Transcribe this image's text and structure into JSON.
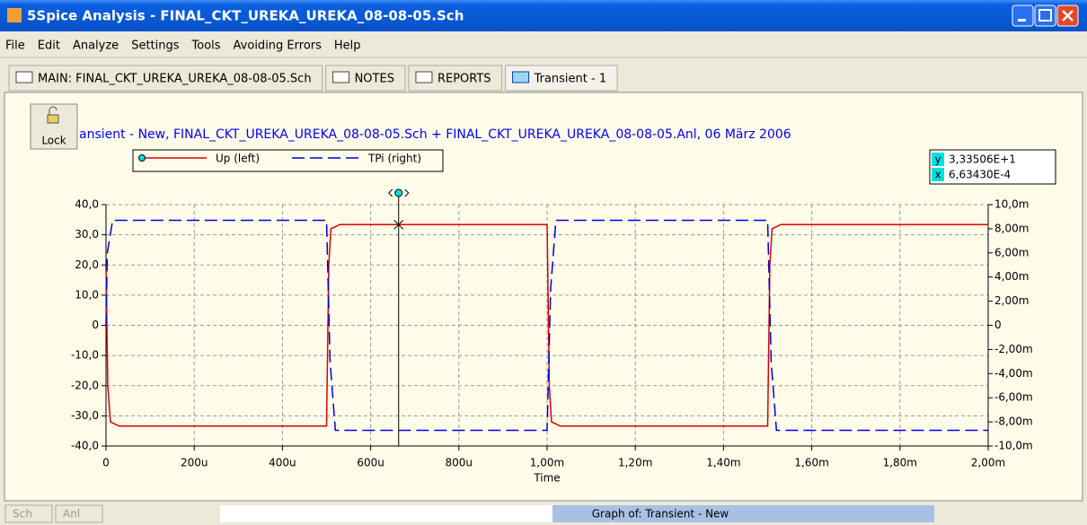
{
  "window": {
    "title": "5Spice Analysis - FINAL_CKT_UREKA_UREKA_08-08-05.Sch",
    "menu": [
      "File",
      "Edit",
      "Analyze",
      "Settings",
      "Tools",
      "Avoiding Errors",
      "Help"
    ],
    "tabs": [
      "MAIN: FINAL_CKT_UREKA_UREKA_08-08-05.Sch",
      "NOTES",
      "REPORTS",
      "Transient - 1"
    ],
    "lock_button": "Lock",
    "status": {
      "sch": "Sch",
      "anl": "Anl",
      "graph": "Graph of:  Transient - New"
    }
  },
  "chart_data": {
    "type": "line",
    "title": "ansient - New,   FINAL_CKT_UREKA_UREKA_08-08-05.Sch + FINAL_CKT_UREKA_UREKA_08-08-05.Anl,   06 März 2006",
    "xlabel": "Time",
    "xlim": [
      0,
      0.002
    ],
    "xticks": [
      0,
      {
        "value": 0.0002,
        "label": "200u"
      },
      {
        "value": 0.0004,
        "label": "400u"
      },
      {
        "value": 0.0006,
        "label": "600u"
      },
      {
        "value": 0.0008,
        "label": "800u"
      },
      {
        "value": 0.001,
        "label": "1,00m"
      },
      {
        "value": 0.0012,
        "label": "1,20m"
      },
      {
        "value": 0.0014,
        "label": "1,40m"
      },
      {
        "value": 0.0016,
        "label": "1,60m"
      },
      {
        "value": 0.0018,
        "label": "1,80m"
      },
      {
        "value": 0.002,
        "label": "2,00m"
      }
    ],
    "ylim": [
      -40,
      40
    ],
    "yticks": [
      {
        "value": 40,
        "label": "40,0"
      },
      {
        "value": 30,
        "label": "30,0"
      },
      {
        "value": 20,
        "label": "20,0"
      },
      {
        "value": 10,
        "label": "10,0"
      },
      0,
      {
        "value": -10,
        "label": "-10,0"
      },
      {
        "value": -20,
        "label": "-20,0"
      },
      {
        "value": -30,
        "label": "-30,0"
      },
      {
        "value": -40,
        "label": "-40,0"
      }
    ],
    "y2lim": [
      -0.01,
      0.01
    ],
    "y2ticks": [
      {
        "value": 0.01,
        "label": "10,0m"
      },
      {
        "value": 0.008,
        "label": "8,00m"
      },
      {
        "value": 0.006,
        "label": "6,00m"
      },
      {
        "value": 0.004,
        "label": "4,00m"
      },
      {
        "value": 0.002,
        "label": "2,00m"
      },
      0,
      {
        "value": -0.002,
        "label": "-2,00m"
      },
      {
        "value": -0.004,
        "label": "-4,00m"
      },
      {
        "value": -0.006,
        "label": "-6,00m"
      },
      {
        "value": -0.008,
        "label": "-8,00m"
      },
      {
        "value": -0.01,
        "label": "-10,0m"
      }
    ],
    "grid": true,
    "legend": "top",
    "series": [
      {
        "name": "Up (left)",
        "color": "#e00000",
        "line_style": "solid",
        "x": [
          0,
          4e-06,
          1e-05,
          3e-05,
          0.0005,
          0.000505,
          0.00051,
          0.00053,
          0.001,
          0.001005,
          0.00101,
          0.00103,
          0.0015,
          0.001505,
          0.00151,
          0.00153,
          0.002
        ],
        "values": [
          20,
          -20,
          -32,
          -33.4,
          -33.4,
          20,
          32,
          33.4,
          33.4,
          -20,
          -32,
          -33.4,
          -33.4,
          20,
          32,
          33.4,
          33.4
        ]
      },
      {
        "name": "TPi (right)",
        "color": "#0000e0",
        "line_style": "dashed",
        "axis": "y2",
        "x": [
          0,
          3e-06,
          1.5e-05,
          0.0005,
          0.000508,
          0.00052,
          0.001,
          0.001008,
          0.00102,
          0.0015,
          0.001508,
          0.00152,
          0.002
        ],
        "values": [
          0,
          0.006,
          0.0087,
          0.0087,
          -0.003,
          -0.0087,
          -0.0087,
          0.003,
          0.0087,
          0.0087,
          -0.003,
          -0.0087,
          -0.0087
        ]
      }
    ],
    "cursor": {
      "x": 0.00066343,
      "y": 33.3506,
      "readout_names": [
        "y",
        "x"
      ],
      "y_label": "3,33506E+1",
      "x_label": "6,63430E-4"
    }
  }
}
